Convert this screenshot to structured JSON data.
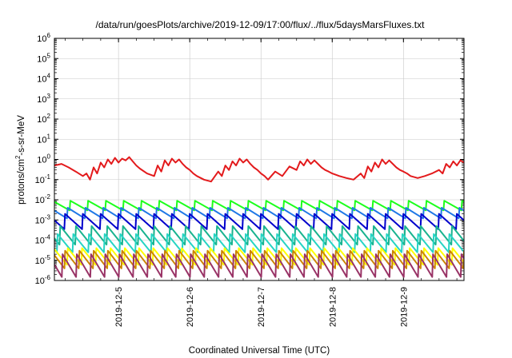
{
  "chart_data": {
    "type": "line",
    "title": "/data/run/goesPlots/archive/2019-12-09/17:00/flux/../flux/5daysMarsFluxes.txt",
    "xlabel": "Coordinated Universal Time (UTC)",
    "ylabel_parts": [
      "protons/cm",
      "2",
      "-s-sr-MeV"
    ],
    "y_scale": "log",
    "ylim": [
      1e-06,
      1000000.0
    ],
    "xlim": [
      0,
      5.75
    ],
    "x_ticks": [
      {
        "value": 0.9,
        "label": "2019-12-5"
      },
      {
        "value": 1.9,
        "label": "2019-12-6"
      },
      {
        "value": 2.9,
        "label": "2019-12-7"
      },
      {
        "value": 3.9,
        "label": "2019-12-8"
      },
      {
        "value": 4.9,
        "label": "2019-12-9"
      }
    ],
    "y_ticks": [
      {
        "value": 1e-06,
        "base": "10",
        "exp": "-6"
      },
      {
        "value": 1e-05,
        "base": "10",
        "exp": "-5"
      },
      {
        "value": 0.0001,
        "base": "10",
        "exp": "-4"
      },
      {
        "value": 0.001,
        "base": "10",
        "exp": "-3"
      },
      {
        "value": 0.01,
        "base": "10",
        "exp": "-2"
      },
      {
        "value": 0.1,
        "base": "10",
        "exp": "-1"
      },
      {
        "value": 1,
        "base": "10",
        "exp": "0"
      },
      {
        "value": 10,
        "base": "10",
        "exp": "1"
      },
      {
        "value": 100,
        "base": "10",
        "exp": "2"
      },
      {
        "value": 1000,
        "base": "10",
        "exp": "3"
      },
      {
        "value": 10000,
        "base": "10",
        "exp": "4"
      },
      {
        "value": 100000,
        "base": "10",
        "exp": "5"
      },
      {
        "value": 1000000,
        "base": "10",
        "exp": "6"
      }
    ],
    "grid": true,
    "series": [
      {
        "color": "#e31a1c",
        "x": [
          0.0,
          0.1,
          0.2,
          0.3,
          0.4,
          0.45,
          0.5,
          0.55,
          0.6,
          0.65,
          0.7,
          0.75,
          0.8,
          0.85,
          0.9,
          0.95,
          1.0,
          1.05,
          1.1,
          1.15,
          1.2,
          1.3,
          1.4,
          1.45,
          1.5,
          1.55,
          1.6,
          1.65,
          1.7,
          1.75,
          1.8,
          1.85,
          1.9,
          1.95,
          2.0,
          2.1,
          2.2,
          2.3,
          2.35,
          2.4,
          2.45,
          2.5,
          2.55,
          2.6,
          2.65,
          2.7,
          2.75,
          2.8,
          2.85,
          2.9,
          2.95,
          3.0,
          3.1,
          3.2,
          3.3,
          3.4,
          3.45,
          3.5,
          3.55,
          3.6,
          3.65,
          3.7,
          3.75,
          3.8,
          3.85,
          3.9,
          4.0,
          4.1,
          4.2,
          4.3,
          4.35,
          4.4,
          4.45,
          4.5,
          4.55,
          4.6,
          4.65,
          4.7,
          4.75,
          4.8,
          4.85,
          4.9,
          4.95,
          5.0,
          5.1,
          5.2,
          5.3,
          5.4,
          5.45,
          5.5,
          5.55,
          5.6,
          5.65,
          5.7,
          5.75
        ],
        "values": [
          0.5,
          0.6,
          0.4,
          0.25,
          0.15,
          0.2,
          0.1,
          0.4,
          0.2,
          0.7,
          0.4,
          1.0,
          0.6,
          1.2,
          0.7,
          1.1,
          0.9,
          1.3,
          0.8,
          0.5,
          0.35,
          0.2,
          0.15,
          0.5,
          0.25,
          0.9,
          0.5,
          1.1,
          0.7,
          1.0,
          0.6,
          0.4,
          0.3,
          0.2,
          0.15,
          0.1,
          0.08,
          0.25,
          0.15,
          0.5,
          0.3,
          0.8,
          0.5,
          1.1,
          0.7,
          1.0,
          0.6,
          0.4,
          0.3,
          0.2,
          0.15,
          0.1,
          0.25,
          0.15,
          0.45,
          0.3,
          0.8,
          0.5,
          1.0,
          0.6,
          0.9,
          0.6,
          0.4,
          0.3,
          0.25,
          0.2,
          0.15,
          0.12,
          0.1,
          0.2,
          0.12,
          0.45,
          0.25,
          0.7,
          0.4,
          1.0,
          0.6,
          0.9,
          0.6,
          0.4,
          0.3,
          0.25,
          0.2,
          0.15,
          0.12,
          0.15,
          0.2,
          0.3,
          0.2,
          0.6,
          0.4,
          0.8,
          0.5,
          0.9,
          0.7
        ]
      },
      {
        "color": "#1cff1c",
        "sawtooth": {
          "period": 0.25,
          "peak": 0.009,
          "trough": 0.003
        }
      },
      {
        "color": "#1f78e6",
        "sawtooth": {
          "period": 0.25,
          "peak": 0.004,
          "trough": 0.0012
        }
      },
      {
        "color": "#0000cc",
        "sawtooth": {
          "period": 0.25,
          "peak": 0.002,
          "trough": 0.00035
        }
      },
      {
        "color": "#19b38f",
        "sawtooth": {
          "period": 0.22,
          "peak": 0.0005,
          "trough": 6e-05
        }
      },
      {
        "color": "#26d4c4",
        "sawtooth": {
          "period": 0.22,
          "peak": 0.0002,
          "trough": 2.5e-05
        }
      },
      {
        "color": "#ffff00",
        "sawtooth": {
          "period": 0.2,
          "peak": 4e-05,
          "trough": 6e-06
        }
      },
      {
        "color": "#cc8400",
        "sawtooth": {
          "period": 0.2,
          "peak": 3e-05,
          "trough": 4e-06
        }
      },
      {
        "color": "#993366",
        "sawtooth": {
          "period": 0.2,
          "peak": 2e-05,
          "trough": 1.5e-06
        }
      }
    ]
  }
}
